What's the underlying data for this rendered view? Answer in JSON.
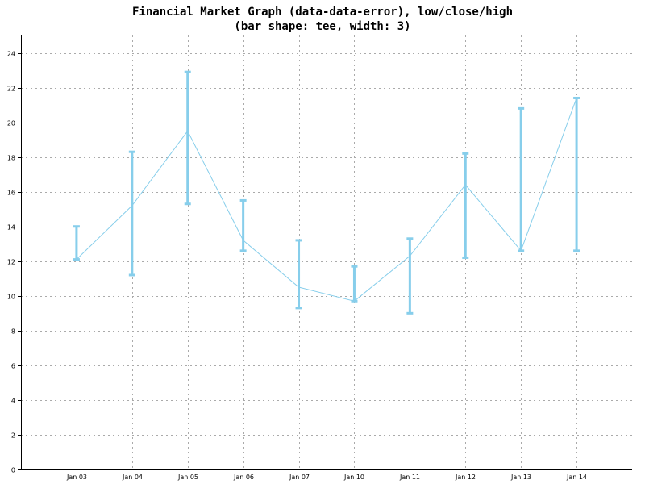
{
  "chart_data": {
    "type": "error-bar-line",
    "title": "Financial Market Graph (data-data-error), low/close/high",
    "subtitle": "(bar shape: tee, width: 3)",
    "xlabel": "",
    "ylabel": "",
    "ylim": [
      0,
      25
    ],
    "yticks": [
      0,
      2,
      4,
      6,
      8,
      10,
      12,
      14,
      16,
      18,
      20,
      22,
      24
    ],
    "grid": true,
    "categories": [
      "Jan 03",
      "Jan 04",
      "Jan 05",
      "Jan 06",
      "Jan 07",
      "Jan 10",
      "Jan 11",
      "Jan 12",
      "Jan 13",
      "Jan 14"
    ],
    "series": [
      {
        "close": [
          12.1,
          15.2,
          19.5,
          13.2,
          10.5,
          9.7,
          12.3,
          16.4,
          12.6,
          21.4
        ],
        "low": [
          12.1,
          11.2,
          15.3,
          12.6,
          9.3,
          9.7,
          9.0,
          12.2,
          12.6,
          12.6
        ],
        "high": [
          14.0,
          18.3,
          22.9,
          15.5,
          13.2,
          11.7,
          13.3,
          18.2,
          20.8,
          21.4
        ]
      }
    ],
    "colors": {
      "line": "#87ceeb",
      "bars": "#87ceeb",
      "grid": "#aaaaaa",
      "axis": "#000000"
    }
  }
}
